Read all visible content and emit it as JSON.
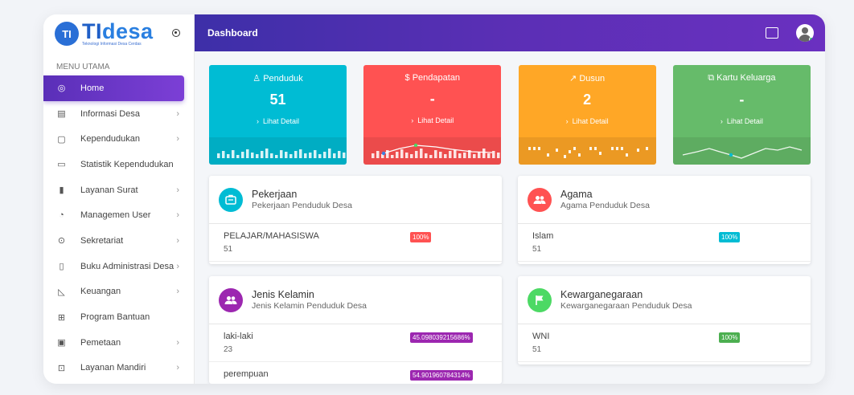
{
  "brand": {
    "mark": "TI",
    "name_part1": "TI",
    "name_part2": "desa",
    "tagline": "Teknologi Informasi Desa Cerdas"
  },
  "topbar": {
    "title": "Dashboard"
  },
  "sidebar": {
    "heading": "MENU UTAMA",
    "items": [
      {
        "label": "Home",
        "icon": "palette-icon",
        "chevron": false,
        "active": true
      },
      {
        "label": "Informasi Desa",
        "icon": "list-icon",
        "chevron": true
      },
      {
        "label": "Kependudukan",
        "icon": "clipboard-icon",
        "chevron": true
      },
      {
        "label": "Statistik Kependudukan",
        "icon": "monitor-icon",
        "chevron": false
      },
      {
        "label": "Layanan Surat",
        "icon": "document-icon",
        "chevron": true
      },
      {
        "label": "Managemen User",
        "icon": "user-circle-icon",
        "chevron": true
      },
      {
        "label": "Sekretariat",
        "icon": "target-icon",
        "chevron": true
      },
      {
        "label": "Buku Administrasi Desa",
        "icon": "book-icon",
        "chevron": true
      },
      {
        "label": "Keuangan",
        "icon": "cast-icon",
        "chevron": true
      },
      {
        "label": "Program Bantuan",
        "icon": "grid-icon",
        "chevron": false
      },
      {
        "label": "Pemetaan",
        "icon": "map-icon",
        "chevron": true
      },
      {
        "label": "Layanan Mandiri",
        "icon": "inbox-icon",
        "chevron": true
      }
    ],
    "chevron_glyph": "›"
  },
  "stats": [
    {
      "label": "Penduduk",
      "icon": "user-icon",
      "glyph": "♙",
      "value": "51",
      "link": "Lihat Detail",
      "color": "#00bcd4",
      "chart": "bars"
    },
    {
      "label": "Pendapatan",
      "icon": "dollar-icon",
      "glyph": "$",
      "value": "-",
      "link": "Lihat Detail",
      "color": "#ff5252",
      "chart": "bars-line"
    },
    {
      "label": "Dusun",
      "icon": "trend-icon",
      "glyph": "↗",
      "value": "2",
      "link": "Lihat Detail",
      "color": "#ffa726",
      "chart": "dots"
    },
    {
      "label": "Kartu Keluarga",
      "icon": "copy-icon",
      "glyph": "⧉",
      "value": "-",
      "link": "Lihat Detail",
      "color": "#66bb6a",
      "chart": "line"
    }
  ],
  "link_prefix": "›",
  "cards": {
    "pekerjaan": {
      "title": "Pekerjaan",
      "subtitle": "Pekerjaan Penduduk Desa",
      "color": "#00bcd4",
      "rows": [
        {
          "name": "PELAJAR/MAHASISWA",
          "count": "51",
          "percent": "100%",
          "badge_color": "#ff5252"
        }
      ]
    },
    "agama": {
      "title": "Agama",
      "subtitle": "Agama Penduduk Desa",
      "color": "#ff5252",
      "rows": [
        {
          "name": "Islam",
          "count": "51",
          "percent": "100%",
          "badge_color": "#00bcd4"
        }
      ]
    },
    "jenis_kelamin": {
      "title": "Jenis Kelamin",
      "subtitle": "Jenis Kelamin Penduduk Desa",
      "color": "#9c27b0",
      "rows": [
        {
          "name": "laki-laki",
          "count": "23",
          "percent": "45.098039215686%",
          "badge_color": "#9c27b0"
        },
        {
          "name": "perempuan",
          "count": "",
          "percent": "54.901960784314%",
          "badge_color": "#9c27b0"
        }
      ]
    },
    "kewarganegaraan": {
      "title": "Kewarganegaraan",
      "subtitle": "Kewarganegaraan Penduduk Desa",
      "color": "#4cd964",
      "rows": [
        {
          "name": "WNI",
          "count": "51",
          "percent": "100%",
          "badge_color": "#4caf50"
        }
      ]
    }
  }
}
